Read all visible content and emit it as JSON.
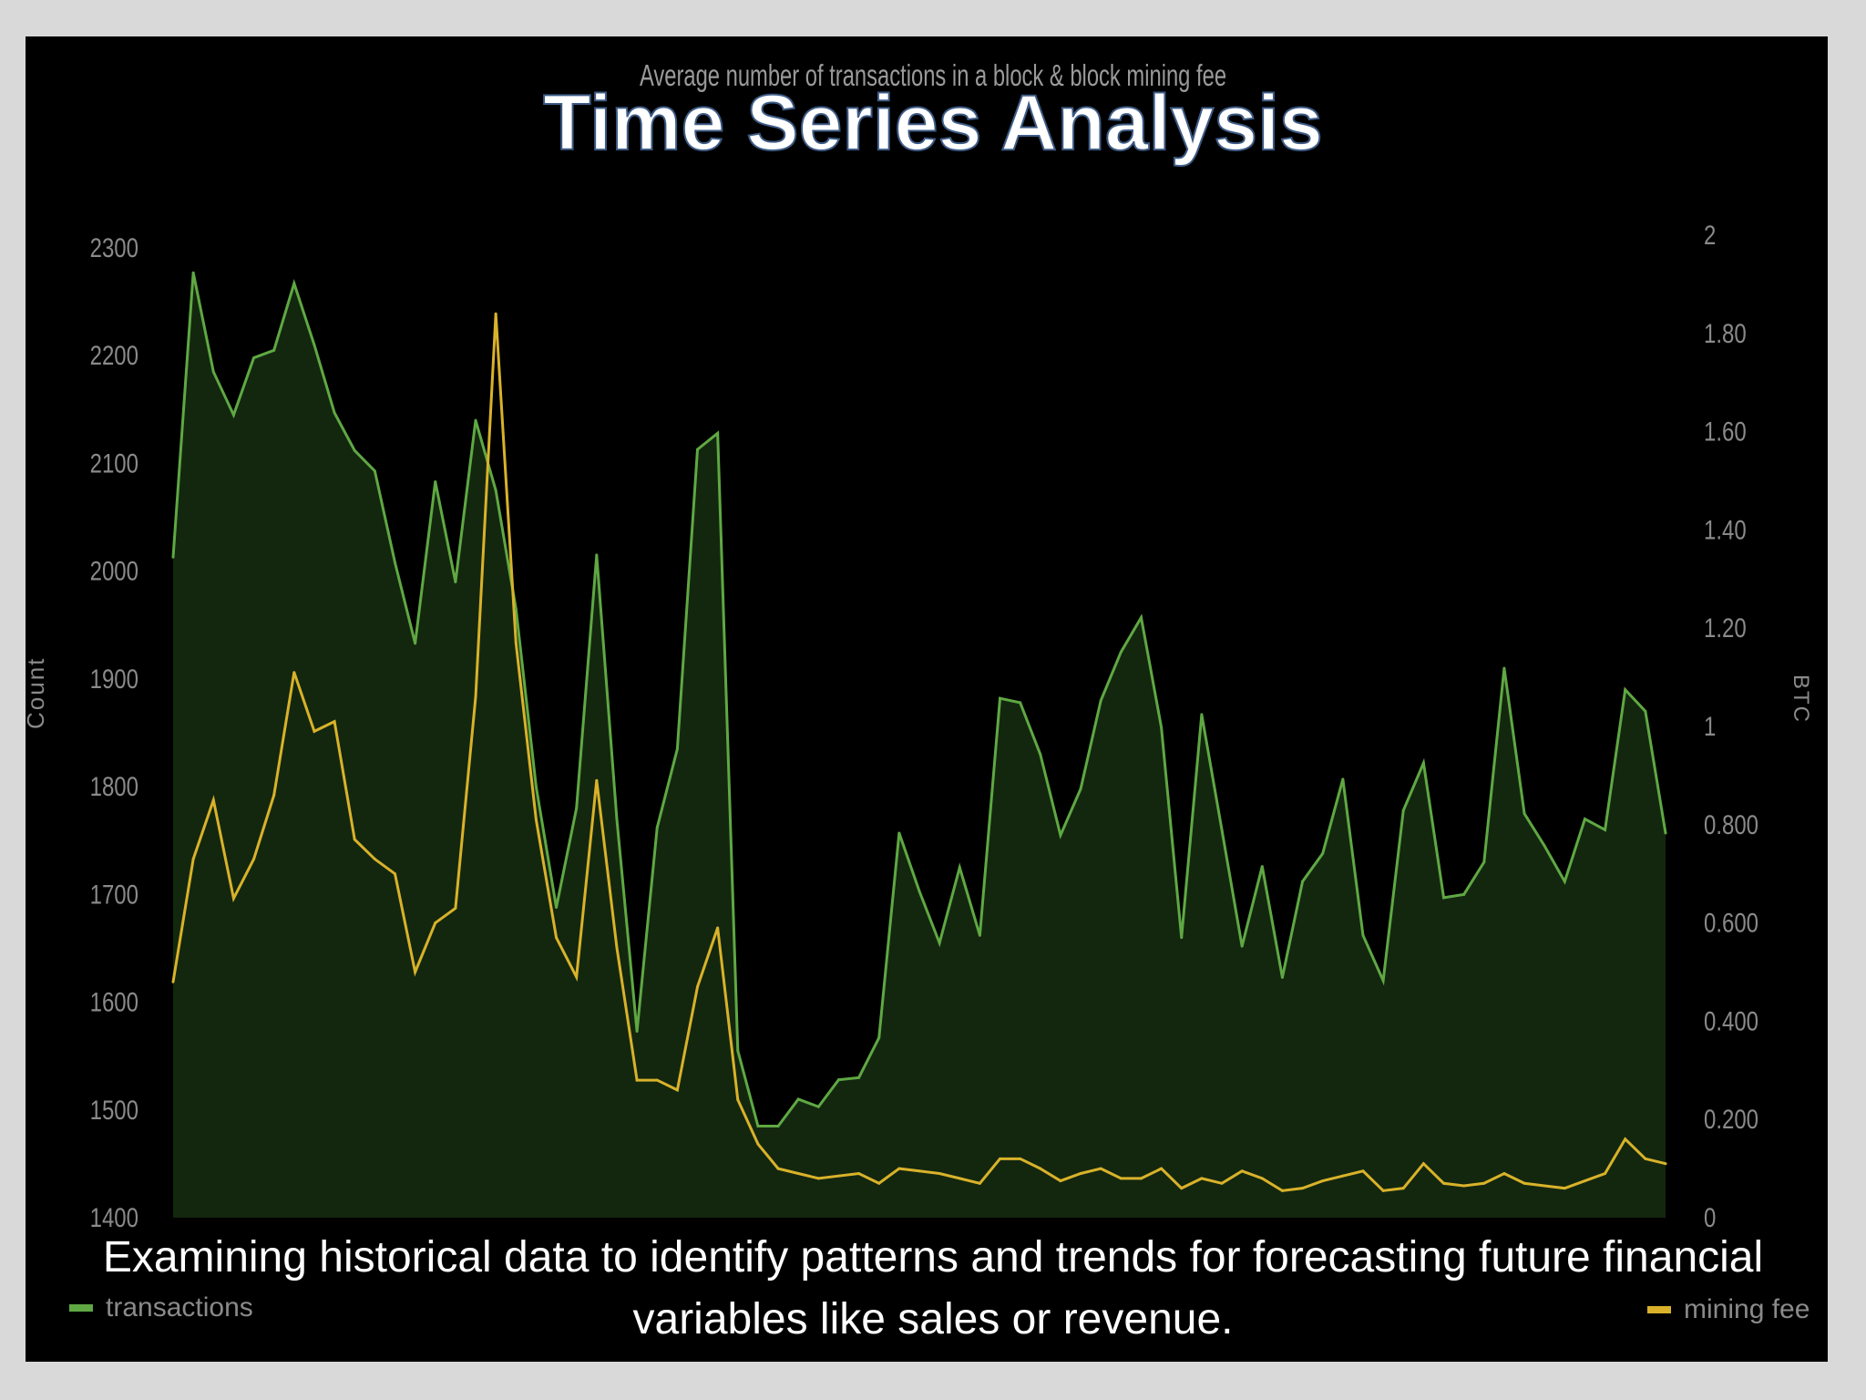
{
  "slide": {
    "title": "Time Series Analysis",
    "subtitle": "Examining historical data to identify patterns and trends for forecasting future financial variables like sales or revenue."
  },
  "chart_data": {
    "type": "line",
    "title": "Average number of transactions in a block & block mining fee",
    "ylabel_left": "Count",
    "ylabel_right": "BTC",
    "y_left_ticks": [
      "1400",
      "1500",
      "1600",
      "1700",
      "1800",
      "1900",
      "2000",
      "2100",
      "2200",
      "2300"
    ],
    "y_left_range": [
      1400,
      2300
    ],
    "y_right_ticks": [
      "0",
      "0.200",
      "0.400",
      "0.600",
      "0.800",
      "1",
      "1.20",
      "1.40",
      "1.60",
      "1.80",
      "2"
    ],
    "y_right_range": [
      0,
      2
    ],
    "grid": false,
    "colors": {
      "transactions": "#5fa843",
      "transactions_fill": "#13270f",
      "mining_fee": "#d9b22a"
    },
    "series": [
      {
        "name": "transactions",
        "axis": "left",
        "values": [
          2013,
          2277,
          2185,
          2145,
          2198,
          2205,
          2267,
          2210,
          2147,
          2112,
          2093,
          2008,
          1933,
          2083,
          1990,
          2140,
          2075,
          1965,
          1800,
          1688,
          1780,
          2015,
          1770,
          1573,
          1762,
          1835,
          2113,
          2128,
          1555,
          1485,
          1485,
          1510,
          1503,
          1528,
          1530,
          1567,
          1757,
          1703,
          1655,
          1725,
          1662,
          1882,
          1878,
          1830,
          1755,
          1798,
          1880,
          1925,
          1957,
          1855,
          1660,
          1867,
          1760,
          1652,
          1726,
          1623,
          1712,
          1738,
          1807,
          1662,
          1620,
          1778,
          1822,
          1697,
          1700,
          1730,
          1910,
          1775,
          1745,
          1712,
          1770,
          1760,
          1890,
          1870,
          1757
        ]
      },
      {
        "name": "mining fee",
        "axis": "right",
        "values": [
          0.48,
          0.73,
          0.85,
          0.65,
          0.73,
          0.86,
          1.11,
          0.99,
          1.01,
          0.77,
          0.73,
          0.7,
          0.5,
          0.6,
          0.63,
          1.06,
          1.84,
          1.17,
          0.81,
          0.57,
          0.49,
          0.89,
          0.55,
          0.28,
          0.28,
          0.26,
          0.47,
          0.59,
          0.24,
          0.15,
          0.1,
          0.09,
          0.08,
          0.085,
          0.09,
          0.07,
          0.1,
          0.095,
          0.09,
          0.08,
          0.07,
          0.12,
          0.12,
          0.1,
          0.075,
          0.09,
          0.1,
          0.08,
          0.08,
          0.1,
          0.06,
          0.08,
          0.07,
          0.095,
          0.08,
          0.055,
          0.06,
          0.075,
          0.085,
          0.095,
          0.055,
          0.06,
          0.11,
          0.07,
          0.065,
          0.07,
          0.09,
          0.07,
          0.065,
          0.06,
          0.075,
          0.09,
          0.16,
          0.12,
          0.11
        ]
      }
    ]
  },
  "legend": {
    "transactions_label": "transactions",
    "mining_fee_label": "mining fee"
  }
}
